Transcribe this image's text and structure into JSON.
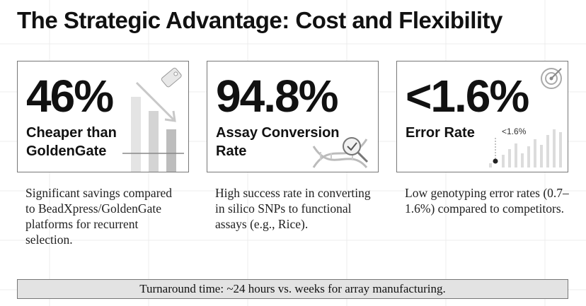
{
  "title": "The Strategic Advantage: Cost and Flexibility",
  "cards": [
    {
      "stat": "46%",
      "label": "Cheaper than GoldenGate",
      "description": "Significant savings compared to BeadXpress/GoldenGate platforms for recurrent selection."
    },
    {
      "stat": "94.8%",
      "label": "Assay Conversion Rate",
      "description": "High success rate in converting in silico SNPs to functional assays (e.g., Rice)."
    },
    {
      "stat": "<1.6%",
      "label": "Error Rate",
      "icon_label": "<1.6%",
      "description": "Low genotyping error rates (0.7–1.6%) compared to competitors."
    }
  ],
  "footer": "Turnaround time: ~24 hours vs. weeks for array manufacturing."
}
